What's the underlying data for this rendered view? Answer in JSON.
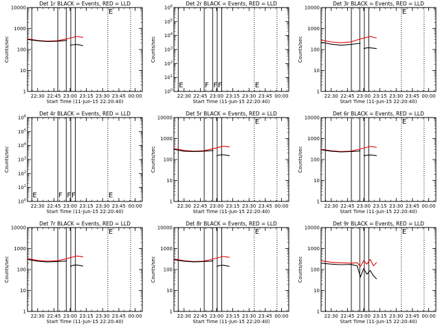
{
  "figure": {
    "xlabel": "Start Time (11-Jun-15 22:20:40)",
    "ylabel": "Counts/sec",
    "x_ticks": [
      "22:30",
      "22:45",
      "23:00",
      "23:15",
      "23:30",
      "23:45",
      "00:00"
    ],
    "colors": {
      "events": "#000000",
      "lld": "#e00000",
      "axes": "#000000"
    }
  },
  "chart_data": [
    {
      "type": "line",
      "title": "Det 1r BLACK = Events, RED = LLD",
      "xlabel": "Start Time (11-Jun-15 22:20:40)",
      "ylabel": "Counts/sec",
      "y_scale": "log",
      "ylim": [
        1,
        10000
      ],
      "y_ticks": [
        {
          "v": 10000,
          "label": "10000"
        },
        {
          "v": 1000,
          "label": "1000"
        },
        {
          "v": 100,
          "label": "100"
        },
        {
          "v": 10,
          "label": "10"
        },
        {
          "v": 1,
          "label": "1"
        }
      ],
      "x_ticks": [
        "22:30",
        "22:45",
        "23:00",
        "23:15",
        "23:30",
        "23:45",
        "00:00"
      ],
      "solid_lines": [
        22.41,
        22.81,
        22.94,
        23.01,
        23.08
      ],
      "dotted_lines": [
        23.58,
        23.93
      ],
      "annotations": [
        {
          "text": "E",
          "x": 23.58
        }
      ],
      "annotations_y": 10000,
      "series": [
        {
          "color": "#e00000",
          "x": [
            22.35,
            22.5,
            22.65,
            22.8,
            22.95,
            23.1,
            23.2
          ],
          "y": [
            320,
            270,
            250,
            260,
            320,
            420,
            380
          ]
        },
        {
          "color": "#000000",
          "x": [
            22.35,
            22.5,
            22.65,
            22.8,
            22.9,
            22.95
          ],
          "y": [
            300,
            260,
            240,
            250,
            260,
            270
          ]
        },
        {
          "color": "#000000",
          "x": [
            23.0,
            23.05,
            23.1,
            23.15,
            23.2
          ],
          "y": [
            160,
            170,
            175,
            165,
            150
          ]
        }
      ]
    },
    {
      "type": "line",
      "title": "Det 2r BLACK = Events, RED = LLD",
      "xlabel": "Start Time (11-Jun-15 22:20:40)",
      "ylabel": "Counts/sec",
      "y_scale": "log",
      "ylim": [
        1,
        1000000
      ],
      "y_ticks": [
        {
          "v": 1000000,
          "label": "10^6"
        },
        {
          "v": 100000,
          "label": "10^5"
        },
        {
          "v": 10000,
          "label": "10^4"
        },
        {
          "v": 1000,
          "label": "10^3"
        },
        {
          "v": 100,
          "label": "10^2"
        },
        {
          "v": 10,
          "label": "10^1"
        },
        {
          "v": 1,
          "label": "10^0"
        }
      ],
      "x_ticks": [
        "22:30",
        "22:45",
        "23:00",
        "23:15",
        "23:30",
        "23:45",
        "00:00"
      ],
      "solid_lines": [
        22.41,
        22.81,
        22.94,
        23.01,
        23.08
      ],
      "dotted_lines": [
        23.58,
        23.93
      ],
      "annotations": [
        {
          "text": "E",
          "x": 22.41
        },
        {
          "text": "F",
          "x": 22.81
        },
        {
          "text": "F",
          "x": 22.94
        },
        {
          "text": "F",
          "x": 23.01
        },
        {
          "text": "E",
          "x": 23.58
        }
      ],
      "annotations_y": 1.6,
      "series": []
    },
    {
      "type": "line",
      "title": "Det 3r BLACK = Events, RED = LLD",
      "xlabel": "Start Time (11-Jun-15 22:20:40)",
      "ylabel": "Counts/sec",
      "y_scale": "log",
      "ylim": [
        1,
        10000
      ],
      "y_ticks": [
        {
          "v": 10000,
          "label": "10000"
        },
        {
          "v": 1000,
          "label": "1000"
        },
        {
          "v": 100,
          "label": "100"
        },
        {
          "v": 10,
          "label": "10"
        },
        {
          "v": 1,
          "label": "1"
        }
      ],
      "x_ticks": [
        "22:30",
        "22:45",
        "23:00",
        "23:15",
        "23:30",
        "23:45",
        "00:00"
      ],
      "solid_lines": [
        22.41,
        22.81,
        22.94,
        23.01,
        23.08
      ],
      "dotted_lines": [
        23.58,
        23.93
      ],
      "annotations": [
        {
          "text": "E",
          "x": 23.58
        }
      ],
      "annotations_y": 10000,
      "series": [
        {
          "color": "#e00000",
          "x": [
            22.35,
            22.5,
            22.65,
            22.8,
            22.95,
            23.1,
            23.2
          ],
          "y": [
            280,
            230,
            210,
            230,
            320,
            420,
            350
          ]
        },
        {
          "color": "#000000",
          "x": [
            22.35,
            22.5,
            22.65,
            22.8,
            22.9,
            22.95
          ],
          "y": [
            220,
            180,
            160,
            175,
            190,
            200
          ]
        },
        {
          "color": "#000000",
          "x": [
            23.0,
            23.05,
            23.1,
            23.15,
            23.2
          ],
          "y": [
            110,
            120,
            120,
            115,
            110
          ]
        }
      ]
    },
    {
      "type": "line",
      "title": "Det 4r BLACK = Events, RED = LLD",
      "xlabel": "Start Time (11-Jun-15 22:20:40)",
      "ylabel": "Counts/sec",
      "y_scale": "log",
      "ylim": [
        1,
        1000000
      ],
      "y_ticks": [
        {
          "v": 1000000,
          "label": "10^6"
        },
        {
          "v": 100000,
          "label": "10^5"
        },
        {
          "v": 10000,
          "label": "10^4"
        },
        {
          "v": 1000,
          "label": "10^3"
        },
        {
          "v": 100,
          "label": "10^2"
        },
        {
          "v": 10,
          "label": "10^1"
        },
        {
          "v": 1,
          "label": "10^0"
        }
      ],
      "x_ticks": [
        "22:30",
        "22:45",
        "23:00",
        "23:15",
        "23:30",
        "23:45",
        "00:00"
      ],
      "solid_lines": [
        22.41,
        22.81,
        22.94,
        23.01,
        23.08
      ],
      "dotted_lines": [
        23.58,
        23.93
      ],
      "annotations": [
        {
          "text": "E",
          "x": 22.41
        },
        {
          "text": "F",
          "x": 22.81
        },
        {
          "text": "F",
          "x": 22.94
        },
        {
          "text": "F",
          "x": 23.01
        },
        {
          "text": "E",
          "x": 23.58
        }
      ],
      "annotations_y": 1.6,
      "series": []
    },
    {
      "type": "line",
      "title": "Det 5r BLACK = Events, RED = LLD",
      "xlabel": "Start Time (11-Jun-15 22:20:40)",
      "ylabel": "Counts/sec",
      "y_scale": "log",
      "ylim": [
        1,
        10000
      ],
      "y_ticks": [
        {
          "v": 10000,
          "label": "10000"
        },
        {
          "v": 1000,
          "label": "1000"
        },
        {
          "v": 100,
          "label": "100"
        },
        {
          "v": 10,
          "label": "10"
        },
        {
          "v": 1,
          "label": "1"
        }
      ],
      "x_ticks": [
        "22:30",
        "22:45",
        "23:00",
        "23:15",
        "23:30",
        "23:45",
        "00:00"
      ],
      "solid_lines": [
        22.41,
        22.81,
        22.94,
        23.01,
        23.08
      ],
      "dotted_lines": [
        23.58,
        23.93
      ],
      "annotations": [
        {
          "text": "E",
          "x": 23.58
        }
      ],
      "annotations_y": 10000,
      "series": [
        {
          "color": "#e00000",
          "x": [
            22.35,
            22.5,
            22.65,
            22.8,
            22.95,
            23.1,
            23.2
          ],
          "y": [
            330,
            270,
            250,
            260,
            330,
            430,
            400
          ]
        },
        {
          "color": "#000000",
          "x": [
            22.35,
            22.5,
            22.65,
            22.8,
            22.9,
            22.95
          ],
          "y": [
            300,
            250,
            240,
            250,
            260,
            270
          ]
        },
        {
          "color": "#000000",
          "x": [
            23.0,
            23.05,
            23.1,
            23.15,
            23.2
          ],
          "y": [
            150,
            165,
            170,
            160,
            150
          ]
        }
      ]
    },
    {
      "type": "line",
      "title": "Det 6r BLACK = Events, RED = LLD",
      "xlabel": "Start Time (11-Jun-15 22:20:40)",
      "ylabel": "Counts/sec",
      "y_scale": "log",
      "ylim": [
        1,
        10000
      ],
      "y_ticks": [
        {
          "v": 10000,
          "label": "10000"
        },
        {
          "v": 1000,
          "label": "1000"
        },
        {
          "v": 100,
          "label": "100"
        },
        {
          "v": 10,
          "label": "10"
        },
        {
          "v": 1,
          "label": "1"
        }
      ],
      "x_ticks": [
        "22:30",
        "22:45",
        "23:00",
        "23:15",
        "23:30",
        "23:45",
        "00:00"
      ],
      "solid_lines": [
        22.41,
        22.81,
        22.94,
        23.01,
        23.08
      ],
      "dotted_lines": [
        23.58,
        23.93
      ],
      "annotations": [
        {
          "text": "E",
          "x": 23.58
        }
      ],
      "annotations_y": 10000,
      "series": [
        {
          "color": "#e00000",
          "x": [
            22.35,
            22.5,
            22.65,
            22.8,
            22.95,
            23.1,
            23.2
          ],
          "y": [
            310,
            260,
            240,
            250,
            320,
            420,
            380
          ]
        },
        {
          "color": "#000000",
          "x": [
            22.35,
            22.5,
            22.65,
            22.8,
            22.9,
            22.95
          ],
          "y": [
            290,
            250,
            230,
            240,
            250,
            260
          ]
        },
        {
          "color": "#000000",
          "x": [
            23.0,
            23.05,
            23.1,
            23.15,
            23.2
          ],
          "y": [
            150,
            160,
            165,
            160,
            150
          ]
        }
      ]
    },
    {
      "type": "line",
      "title": "Det 7r BLACK = Events, RED = LLD",
      "xlabel": "Start Time (11-Jun-15 22:20:40)",
      "ylabel": "Counts/sec",
      "y_scale": "log",
      "ylim": [
        1,
        10000
      ],
      "y_ticks": [
        {
          "v": 10000,
          "label": "10000"
        },
        {
          "v": 1000,
          "label": "1000"
        },
        {
          "v": 100,
          "label": "100"
        },
        {
          "v": 10,
          "label": "10"
        },
        {
          "v": 1,
          "label": "1"
        }
      ],
      "x_ticks": [
        "22:30",
        "22:45",
        "23:00",
        "23:15",
        "23:30",
        "23:45",
        "00:00"
      ],
      "solid_lines": [
        22.41,
        22.81,
        22.94,
        23.01,
        23.08
      ],
      "dotted_lines": [
        23.58,
        23.93
      ],
      "annotations": [
        {
          "text": "E",
          "x": 23.58
        }
      ],
      "annotations_y": 10000,
      "series": [
        {
          "color": "#e00000",
          "x": [
            22.35,
            22.5,
            22.65,
            22.8,
            22.95,
            23.1,
            23.2
          ],
          "y": [
            330,
            270,
            250,
            260,
            330,
            440,
            400
          ]
        },
        {
          "color": "#000000",
          "x": [
            22.35,
            22.5,
            22.65,
            22.8,
            22.9,
            22.95
          ],
          "y": [
            300,
            250,
            230,
            240,
            250,
            260
          ]
        },
        {
          "color": "#000000",
          "x": [
            23.0,
            23.05,
            23.1,
            23.15,
            23.2
          ],
          "y": [
            140,
            160,
            165,
            155,
            145
          ]
        }
      ]
    },
    {
      "type": "line",
      "title": "Det 8r BLACK = Events, RED = LLD",
      "xlabel": "Start Time (11-Jun-15 22:20:40)",
      "ylabel": "Counts/sec",
      "y_scale": "log",
      "ylim": [
        1,
        10000
      ],
      "y_ticks": [
        {
          "v": 10000,
          "label": "10000"
        },
        {
          "v": 1000,
          "label": "1000"
        },
        {
          "v": 100,
          "label": "100"
        },
        {
          "v": 10,
          "label": "10"
        },
        {
          "v": 1,
          "label": "1"
        }
      ],
      "x_ticks": [
        "22:30",
        "22:45",
        "23:00",
        "23:15",
        "23:30",
        "23:45",
        "00:00"
      ],
      "solid_lines": [
        22.41,
        22.81,
        22.94,
        23.01,
        23.08
      ],
      "dotted_lines": [
        23.58,
        23.93
      ],
      "annotations": [
        {
          "text": "E",
          "x": 23.58
        }
      ],
      "annotations_y": 10000,
      "series": [
        {
          "color": "#e00000",
          "x": [
            22.35,
            22.5,
            22.65,
            22.8,
            22.95,
            23.1,
            23.2
          ],
          "y": [
            320,
            260,
            240,
            250,
            320,
            420,
            380
          ]
        },
        {
          "color": "#000000",
          "x": [
            22.35,
            22.5,
            22.65,
            22.8,
            22.9,
            22.95
          ],
          "y": [
            290,
            250,
            230,
            240,
            250,
            260
          ]
        },
        {
          "color": "#000000",
          "x": [
            23.0,
            23.05,
            23.1,
            23.15,
            23.2
          ],
          "y": [
            140,
            155,
            160,
            150,
            140
          ]
        }
      ]
    },
    {
      "type": "line",
      "title": "Det 9r BLACK = Events, RED = LLD",
      "xlabel": "Start Time (11-Jun-15 22:20:40)",
      "ylabel": "Counts/sec",
      "y_scale": "log",
      "ylim": [
        1,
        10000
      ],
      "y_ticks": [
        {
          "v": 10000,
          "label": "10000"
        },
        {
          "v": 1000,
          "label": "1000"
        },
        {
          "v": 100,
          "label": "100"
        },
        {
          "v": 10,
          "label": "10"
        },
        {
          "v": 1,
          "label": "1"
        }
      ],
      "x_ticks": [
        "22:30",
        "22:45",
        "23:00",
        "23:15",
        "23:30",
        "23:45",
        "00:00"
      ],
      "solid_lines": [
        22.41,
        22.81,
        22.94,
        23.01,
        23.08
      ],
      "dotted_lines": [
        23.58,
        23.93
      ],
      "annotations": [
        {
          "text": "E",
          "x": 23.58
        }
      ],
      "annotations_y": 10000,
      "series": [
        {
          "color": "#e00000",
          "x": [
            22.35,
            22.5,
            22.65,
            22.8,
            22.9,
            22.95,
            23.0,
            23.05,
            23.1,
            23.15,
            23.2
          ],
          "y": [
            260,
            220,
            210,
            200,
            210,
            140,
            260,
            180,
            300,
            150,
            220
          ]
        },
        {
          "color": "#000000",
          "x": [
            22.35,
            22.5,
            22.65,
            22.8,
            22.9,
            22.95,
            23.0,
            23.05,
            23.1,
            23.15,
            23.2
          ],
          "y": [
            200,
            180,
            170,
            175,
            150,
            45,
            110,
            60,
            90,
            50,
            35
          ]
        }
      ]
    }
  ]
}
